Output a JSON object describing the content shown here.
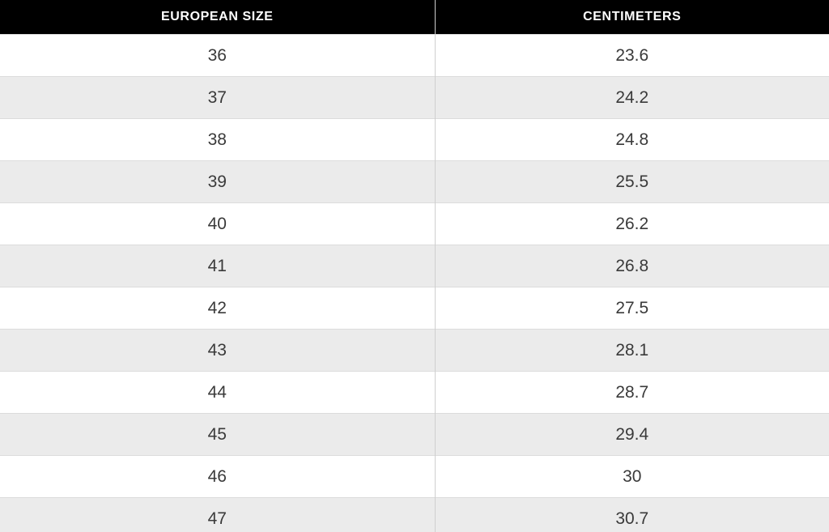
{
  "colors": {
    "header_bg": "#000000",
    "header_text": "#ffffff",
    "row_bg": "#ffffff",
    "row_alt_bg": "#ebebeb",
    "column_divider": "#cfcfcf",
    "row_border": "#dcdcdc",
    "cell_text": "#3a3a3a"
  },
  "table": {
    "headers": {
      "eu": "EUROPEAN SIZE",
      "cm": "CENTIMETERS"
    },
    "rows": [
      {
        "eu": "36",
        "cm": "23.6"
      },
      {
        "eu": "37",
        "cm": "24.2"
      },
      {
        "eu": "38",
        "cm": "24.8"
      },
      {
        "eu": "39",
        "cm": "25.5"
      },
      {
        "eu": "40",
        "cm": "26.2"
      },
      {
        "eu": "41",
        "cm": "26.8"
      },
      {
        "eu": "42",
        "cm": "27.5"
      },
      {
        "eu": "43",
        "cm": "28.1"
      },
      {
        "eu": "44",
        "cm": "28.7"
      },
      {
        "eu": "45",
        "cm": "29.4"
      },
      {
        "eu": "46",
        "cm": "30"
      },
      {
        "eu": "47",
        "cm": "30.7"
      }
    ]
  },
  "chart_data": {
    "type": "table",
    "columns": [
      "EUROPEAN SIZE",
      "CENTIMETERS"
    ],
    "rows": [
      [
        "36",
        "23.6"
      ],
      [
        "37",
        "24.2"
      ],
      [
        "38",
        "24.8"
      ],
      [
        "39",
        "25.5"
      ],
      [
        "40",
        "26.2"
      ],
      [
        "41",
        "26.8"
      ],
      [
        "42",
        "27.5"
      ],
      [
        "43",
        "28.1"
      ],
      [
        "44",
        "28.7"
      ],
      [
        "45",
        "29.4"
      ],
      [
        "46",
        "30"
      ],
      [
        "47",
        "30.7"
      ]
    ]
  }
}
